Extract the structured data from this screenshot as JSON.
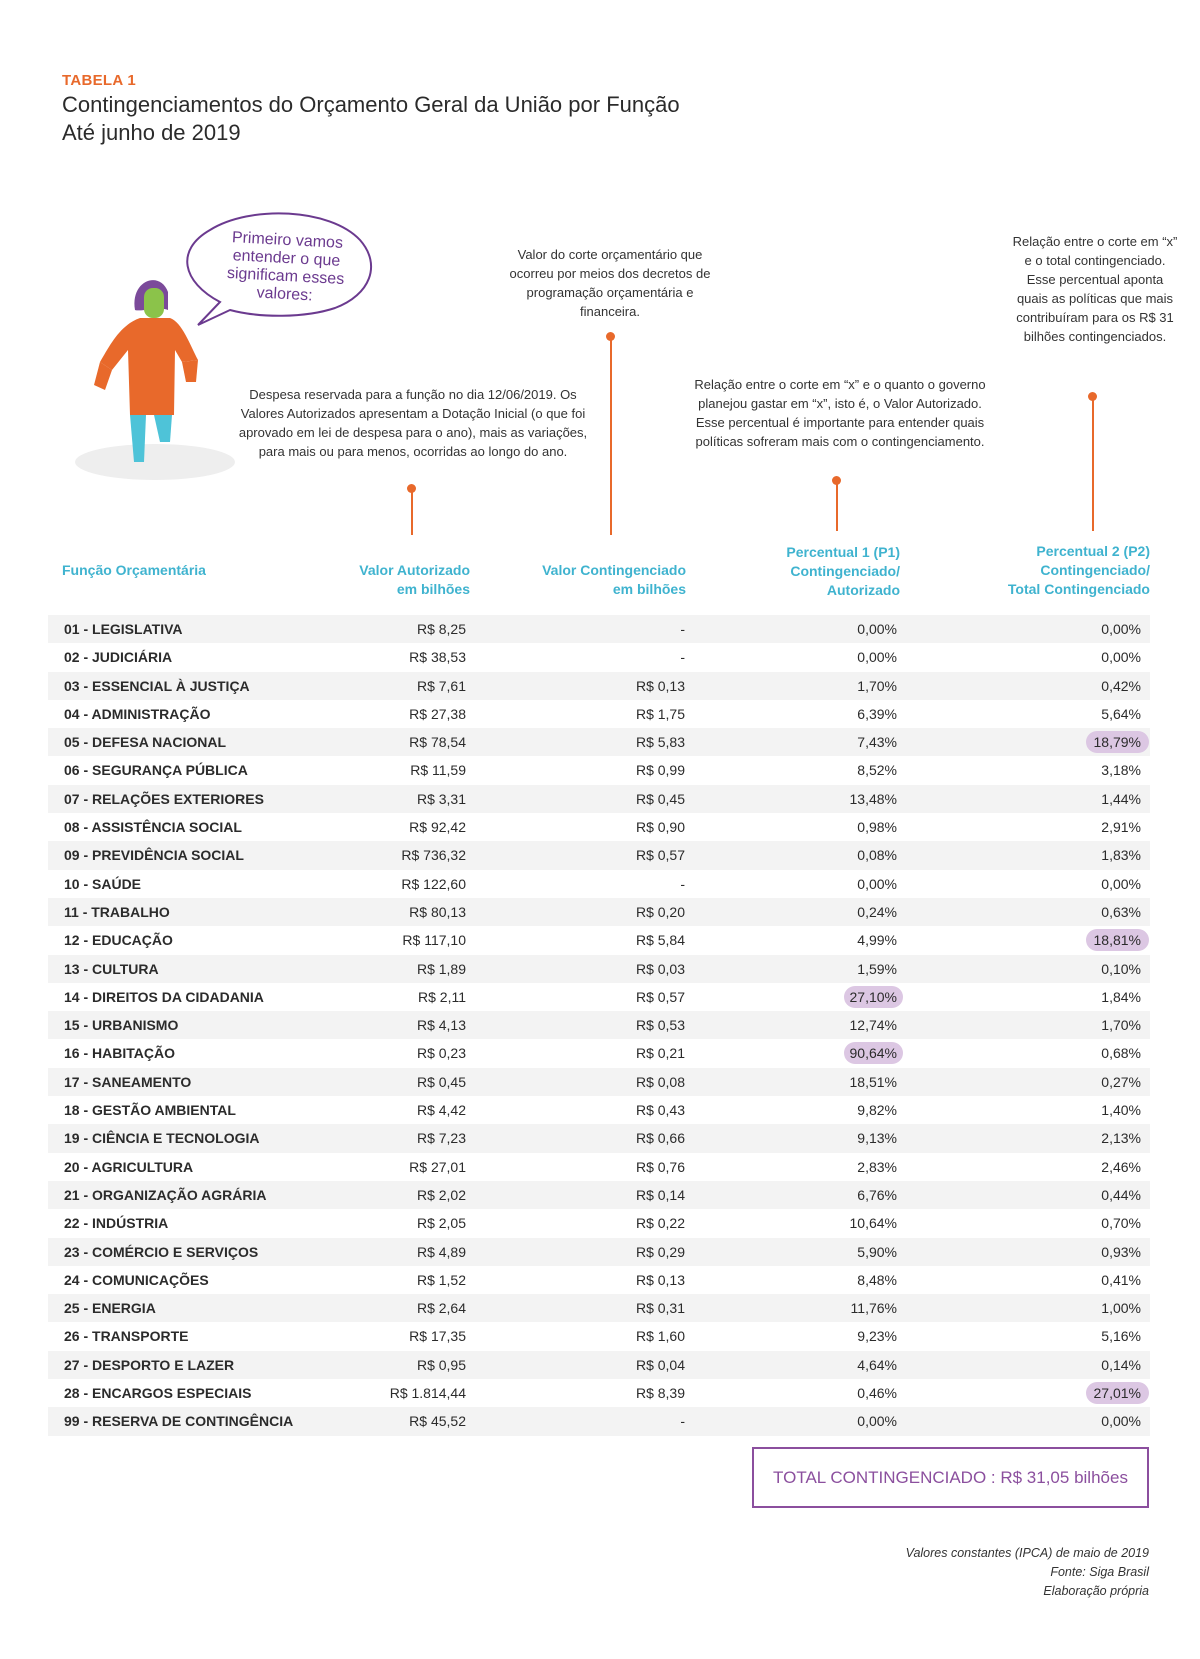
{
  "header": {
    "tag": "TABELA 1",
    "title_line1": "Contingenciamentos do Orçamento Geral da União por Função",
    "title_line2": "Até junho de 2019"
  },
  "speech_bubble": "Primeiro vamos entender o que significam esses valores:",
  "annotations": {
    "valor_autorizado": "Despesa reservada para a função no dia 12/06/2019. Os Valores Autorizados apresentam a Dotação Inicial (o que foi aprovado em lei de despesa para o ano), mais as variações, para mais ou para menos, ocorridas ao longo do ano.",
    "valor_contingenciado": "Valor do corte orçamentário que ocorreu por meios dos decretos de programação orçamentária e financeira.",
    "percentual1": "Relação entre o corte em “x” e o quanto o governo planejou gastar em “x”, isto é, o Valor Autorizado. Esse percentual é importante para entender quais políticas sofreram mais com o contingenciamento.",
    "percentual2": "Relação entre o corte em “x” e o total contingenciado. Esse percentual aponta quais as políticas que mais contribuíram para os R$ 31 bilhões contingenciados."
  },
  "columns": {
    "c0": "Função Orçamentária",
    "c1_l1": "Valor Autorizado",
    "c1_l2": "em bilhões",
    "c2_l1": "Valor Contingenciado",
    "c2_l2": "em bilhões",
    "c3_l1": "Percentual 1 (P1)",
    "c3_l2": "Contingenciado/",
    "c3_l3": "Autorizado",
    "c4_l1": "Percentual 2 (P2)",
    "c4_l2": "Contingenciado/",
    "c4_l3": "Total Contingenciado"
  },
  "rows": [
    {
      "funcao": "01 - LEGISLATIVA",
      "autorizado": "R$ 8,25",
      "contingenciado": "-",
      "p1": "0,00%",
      "p2": "0,00%"
    },
    {
      "funcao": "02 - JUDICIÁRIA",
      "autorizado": "R$ 38,53",
      "contingenciado": "-",
      "p1": "0,00%",
      "p2": "0,00%"
    },
    {
      "funcao": "03 - ESSENCIAL À JUSTIÇA",
      "autorizado": "R$ 7,61",
      "contingenciado": "R$ 0,13",
      "p1": "1,70%",
      "p2": "0,42%"
    },
    {
      "funcao": "04 - ADMINISTRAÇÃO",
      "autorizado": "R$ 27,38",
      "contingenciado": "R$ 1,75",
      "p1": "6,39%",
      "p2": "5,64%"
    },
    {
      "funcao": "05 - DEFESA NACIONAL",
      "autorizado": "R$ 78,54",
      "contingenciado": "R$ 5,83",
      "p1": "7,43%",
      "p2": "18,79%",
      "hl_p2": true
    },
    {
      "funcao": "06 - SEGURANÇA PÚBLICA",
      "autorizado": "R$ 11,59",
      "contingenciado": "R$ 0,99",
      "p1": "8,52%",
      "p2": "3,18%"
    },
    {
      "funcao": "07 - RELAÇÕES EXTERIORES",
      "autorizado": "R$ 3,31",
      "contingenciado": "R$ 0,45",
      "p1": "13,48%",
      "p2": "1,44%"
    },
    {
      "funcao": "08 - ASSISTÊNCIA SOCIAL",
      "autorizado": "R$ 92,42",
      "contingenciado": "R$ 0,90",
      "p1": "0,98%",
      "p2": "2,91%"
    },
    {
      "funcao": "09 - PREVIDÊNCIA SOCIAL",
      "autorizado": "R$ 736,32",
      "contingenciado": "R$ 0,57",
      "p1": "0,08%",
      "p2": "1,83%"
    },
    {
      "funcao": "10 - SAÚDE",
      "autorizado": "R$ 122,60",
      "contingenciado": "-",
      "p1": "0,00%",
      "p2": "0,00%"
    },
    {
      "funcao": "11 - TRABALHO",
      "autorizado": "R$ 80,13",
      "contingenciado": "R$ 0,20",
      "p1": "0,24%",
      "p2": "0,63%"
    },
    {
      "funcao": "12 - EDUCAÇÃO",
      "autorizado": "R$ 117,10",
      "contingenciado": "R$ 5,84",
      "p1": "4,99%",
      "p2": "18,81%",
      "hl_p2": true
    },
    {
      "funcao": "13 - CULTURA",
      "autorizado": "R$ 1,89",
      "contingenciado": "R$ 0,03",
      "p1": "1,59%",
      "p2": "0,10%"
    },
    {
      "funcao": "14 - DIREITOS DA CIDADANIA",
      "autorizado": "R$ 2,11",
      "contingenciado": "R$ 0,57",
      "p1": "27,10%",
      "p2": "1,84%",
      "hl_p1": true
    },
    {
      "funcao": "15 - URBANISMO",
      "autorizado": "R$ 4,13",
      "contingenciado": "R$ 0,53",
      "p1": "12,74%",
      "p2": "1,70%"
    },
    {
      "funcao": "16 - HABITAÇÃO",
      "autorizado": "R$ 0,23",
      "contingenciado": "R$ 0,21",
      "p1": "90,64%",
      "p2": "0,68%",
      "hl_p1": true
    },
    {
      "funcao": "17 - SANEAMENTO",
      "autorizado": "R$ 0,45",
      "contingenciado": "R$ 0,08",
      "p1": "18,51%",
      "p2": "0,27%"
    },
    {
      "funcao": "18 - GESTÃO AMBIENTAL",
      "autorizado": "R$ 4,42",
      "contingenciado": "R$ 0,43",
      "p1": "9,82%",
      "p2": "1,40%"
    },
    {
      "funcao": "19 - CIÊNCIA E TECNOLOGIA",
      "autorizado": "R$ 7,23",
      "contingenciado": "R$ 0,66",
      "p1": "9,13%",
      "p2": "2,13%"
    },
    {
      "funcao": "20 - AGRICULTURA",
      "autorizado": "R$ 27,01",
      "contingenciado": "R$ 0,76",
      "p1": "2,83%",
      "p2": "2,46%"
    },
    {
      "funcao": "21 - ORGANIZAÇÃO AGRÁRIA",
      "autorizado": "R$ 2,02",
      "contingenciado": "R$ 0,14",
      "p1": "6,76%",
      "p2": "0,44%"
    },
    {
      "funcao": "22 - INDÚSTRIA",
      "autorizado": "R$ 2,05",
      "contingenciado": "R$ 0,22",
      "p1": "10,64%",
      "p2": "0,70%"
    },
    {
      "funcao": "23 - COMÉRCIO E SERVIÇOS",
      "autorizado": "R$ 4,89",
      "contingenciado": "R$ 0,29",
      "p1": "5,90%",
      "p2": "0,93%"
    },
    {
      "funcao": "24 - COMUNICAÇÕES",
      "autorizado": "R$ 1,52",
      "contingenciado": "R$ 0,13",
      "p1": "8,48%",
      "p2": "0,41%"
    },
    {
      "funcao": "25 - ENERGIA",
      "autorizado": "R$ 2,64",
      "contingenciado": "R$ 0,31",
      "p1": "11,76%",
      "p2": "1,00%"
    },
    {
      "funcao": "26 - TRANSPORTE",
      "autorizado": "R$ 17,35",
      "contingenciado": "R$ 1,60",
      "p1": "9,23%",
      "p2": "5,16%"
    },
    {
      "funcao": "27 - DESPORTO E LAZER",
      "autorizado": "R$ 0,95",
      "contingenciado": "R$ 0,04",
      "p1": "4,64%",
      "p2": "0,14%"
    },
    {
      "funcao": "28 - ENCARGOS ESPECIAIS",
      "autorizado": "R$ 1.814,44",
      "contingenciado": "R$ 8,39",
      "p1": "0,46%",
      "p2": "27,01%",
      "hl_p2": true
    },
    {
      "funcao": "99 - RESERVA DE CONTINGÊNCIA",
      "autorizado": "R$ 45,52",
      "contingenciado": "-",
      "p1": "0,00%",
      "p2": "0,00%"
    }
  ],
  "total": "TOTAL CONTINGENCIADO : R$ 31,05 bilhões",
  "footer": {
    "line1": "Valores constantes (IPCA) de maio de 2019",
    "line2": "Fonte: Siga Brasil",
    "line3": "Elaboração própria"
  },
  "colors": {
    "orange": "#e8692b",
    "teal": "#3fb3cf",
    "purple": "#8b4f9e",
    "highlight": "#dcc7e3"
  },
  "icons": [
    "person-illustration",
    "speech-bubble-icon"
  ]
}
